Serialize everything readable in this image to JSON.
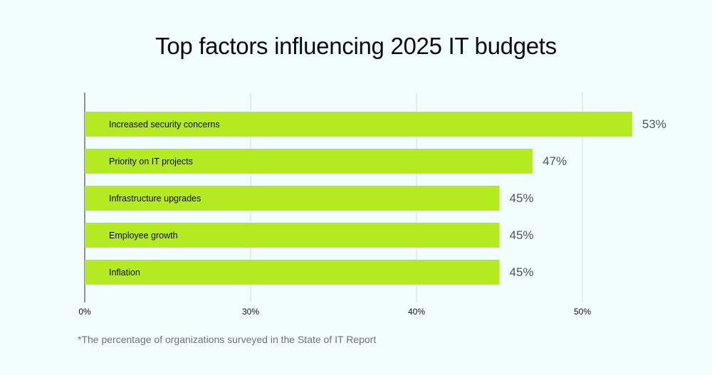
{
  "chart_data": {
    "type": "bar",
    "orientation": "horizontal",
    "title": "Top factors influencing 2025 IT budgets",
    "categories": [
      "Increased security concerns",
      "Priority on IT projects",
      "Infrastructure upgrades",
      "Employee growth",
      "Inflation"
    ],
    "values": [
      53,
      47,
      45,
      45,
      45
    ],
    "data_labels": [
      "53%",
      "47%",
      "45%",
      "45%",
      "45%"
    ],
    "x_ticks": [
      0,
      30,
      40,
      50
    ],
    "x_tick_labels": [
      "0%",
      "30%",
      "40%",
      "50%"
    ],
    "x_axis_note": "broken axis: 0% to 30% compressed to one tick interval",
    "grid": true,
    "colors": {
      "bar": "#b3ea22",
      "grid": "#dde6e8",
      "axis": "#6b6f74",
      "label": "#111111",
      "value": "#4b5560"
    }
  },
  "footnote": "*The percentage of organizations surveyed in the State of IT Report"
}
